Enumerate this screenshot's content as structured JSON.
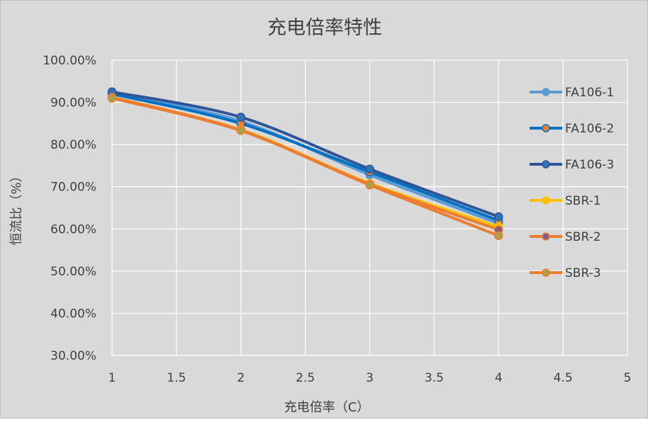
{
  "chart_data": {
    "type": "line",
    "title": "充电倍率特性",
    "xlabel": "充电倍率（C）",
    "ylabel": "恒流比（%）",
    "xlim": [
      1,
      5
    ],
    "ylim": [
      30,
      100
    ],
    "x_ticks": [
      "1",
      "1.5",
      "2",
      "2.5",
      "3",
      "3.5",
      "4",
      "4.5",
      "5"
    ],
    "y_ticks": [
      "30.00%",
      "40.00%",
      "50.00%",
      "60.00%",
      "70.00%",
      "80.00%",
      "90.00%",
      "100.00%"
    ],
    "grid": true,
    "legend_position": "right",
    "x": [
      1,
      2,
      3,
      4
    ],
    "series": [
      {
        "name": "FA106-1",
        "values": [
          92.3,
          85.5,
          72.8,
          61.3
        ],
        "color": "#5b9bd5",
        "marker": "#5b9bd5"
      },
      {
        "name": "FA106-2",
        "values": [
          92.0,
          85.0,
          73.5,
          62.0
        ],
        "color": "#0070c0",
        "marker": "#ed7d31"
      },
      {
        "name": "FA106-3",
        "values": [
          92.5,
          86.5,
          74.2,
          62.9
        ],
        "color": "#2f5597",
        "marker": "#2e75b6"
      },
      {
        "name": "SBR-1",
        "values": [
          91.0,
          83.5,
          70.8,
          60.5
        ],
        "color": "#ffc000",
        "marker": "#ffc000"
      },
      {
        "name": "SBR-2",
        "values": [
          91.2,
          83.4,
          70.6,
          59.8
        ],
        "color": "#ed7d31",
        "marker": "#7f6084"
      },
      {
        "name": "SBR-3",
        "values": [
          91.0,
          83.3,
          70.4,
          58.4
        ],
        "color": "#ed7d31",
        "marker": "#a9a148"
      }
    ]
  }
}
